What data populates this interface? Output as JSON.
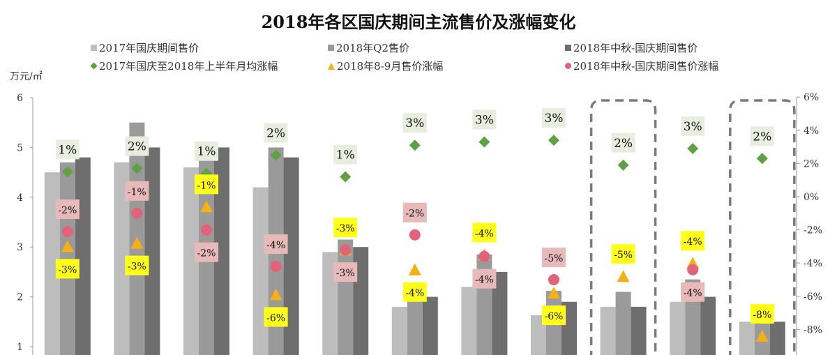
{
  "chart_data": {
    "type": "bar",
    "title": "2018年各区国庆期间主流售价及涨幅变化",
    "ylabel": "万元/㎡",
    "ylim": [
      1,
      6
    ],
    "y_ticks": [
      "1",
      "2",
      "3",
      "4",
      "5",
      "6"
    ],
    "y2lim": [
      -8,
      6
    ],
    "y2_ticks": [
      "-8%",
      "-6%",
      "-4%",
      "-2%",
      "0%",
      "2%",
      "4%",
      "6%"
    ],
    "categories": [
      "",
      "",
      "",
      "",
      "",
      "",
      "",
      "",
      "",
      "",
      ""
    ],
    "legend_position": "top",
    "series": [
      {
        "name": "2017年国庆期间售价",
        "kind": "bar",
        "color": "#bdbdbd",
        "values": [
          4.5,
          4.7,
          4.6,
          4.2,
          2.9,
          1.8,
          2.2,
          1.63,
          1.8,
          1.9,
          1.5
        ]
      },
      {
        "name": "2018年Q2售价",
        "kind": "bar",
        "color": "#9a9a9a",
        "values": [
          4.7,
          5.5,
          5.1,
          5.0,
          3.15,
          1.92,
          2.85,
          2.12,
          2.1,
          2.35,
          1.5
        ]
      },
      {
        "name": "2018年中秋-国庆期间售价",
        "kind": "bar",
        "color": "#6e6e6e",
        "values": [
          4.8,
          5.0,
          5.0,
          4.8,
          3.0,
          2.0,
          2.5,
          1.9,
          1.8,
          2.0,
          1.5
        ]
      },
      {
        "name": "2017年国庆至2018年上半年月均涨幅",
        "kind": "diamond",
        "axis": "right",
        "color": "#5fa043",
        "label_bg": "#e8eddf",
        "values": [
          1.5,
          1.7,
          1.4,
          2.5,
          1.2,
          3.1,
          3.3,
          3.4,
          1.9,
          2.9,
          2.3
        ],
        "labels": [
          "1%",
          "2%",
          "1%",
          "2%",
          "1%",
          "3%",
          "3%",
          "3%",
          "2%",
          "3%",
          "2%"
        ]
      },
      {
        "name": "2018年8-9月售价涨幅",
        "kind": "triangle",
        "axis": "right",
        "color": "#f5b016",
        "label_bg": "#ffff1a",
        "values": [
          -3.0,
          -2.8,
          -0.6,
          -5.9,
          -3.2,
          -4.4,
          -3.5,
          -5.8,
          -4.8,
          -4.0,
          -8.4
        ],
        "labels": [
          "-3%",
          "-3%",
          "-1%",
          "-6%",
          "-3%",
          "-4%",
          "-4%",
          "-6%",
          "-5%",
          "-4%",
          "-8%"
        ]
      },
      {
        "name": "2018年中秋-国庆期间售价涨幅",
        "kind": "circle",
        "axis": "right",
        "color": "#e0637a",
        "label_bg": "#e8b9b9",
        "values": [
          -2.1,
          -1.0,
          -2.0,
          -4.2,
          -3.2,
          -2.3,
          -3.6,
          -5.0,
          null,
          -4.4,
          null
        ],
        "labels": [
          "-2%",
          "-1%",
          "-2%",
          "-4%",
          "-3%",
          "-2%",
          "-4%",
          "-5%",
          "",
          "-4%",
          ""
        ]
      }
    ],
    "highlighted_categories": [
      8,
      10
    ],
    "highlight_color": "#7a7a7a"
  }
}
